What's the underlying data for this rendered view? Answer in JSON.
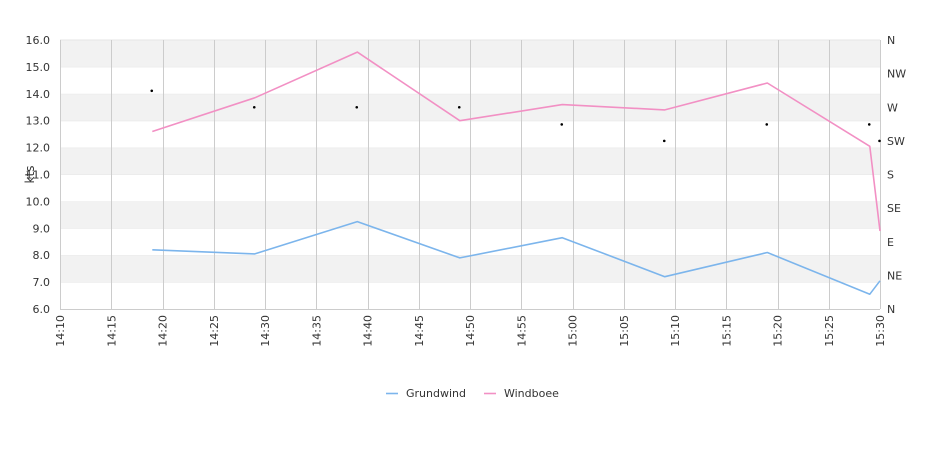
{
  "chart_data": {
    "type": "line",
    "ylabel": "kts",
    "ylim": [
      6.0,
      16.0
    ],
    "y_ticks": [
      "6.0",
      "7.0",
      "8.0",
      "9.0",
      "10.0",
      "11.0",
      "12.0",
      "13.0",
      "14.0",
      "15.0",
      "16.0"
    ],
    "x_range": [
      "14:10",
      "15:30"
    ],
    "x_ticks": [
      "14:10",
      "14:15",
      "14:20",
      "14:25",
      "14:30",
      "14:35",
      "14:40",
      "14:45",
      "14:50",
      "14:55",
      "15:00",
      "15:05",
      "15:10",
      "15:15",
      "15:20",
      "15:25",
      "15:30"
    ],
    "y2_ticks": [
      "N",
      "NE",
      "E",
      "SE",
      "S",
      "SW",
      "W",
      "NW",
      "N"
    ],
    "y2_range_degrees": [
      0,
      360
    ],
    "grid": {
      "vertical": true,
      "horizontal_bands": true
    },
    "legend_position": "bottom-center",
    "series": [
      {
        "name": "Grundwind",
        "color": "#7cb5ec",
        "x": [
          "14:19",
          "14:29",
          "14:39",
          "14:49",
          "14:59",
          "15:09",
          "15:19",
          "15:29",
          "15:30"
        ],
        "values": [
          8.2,
          8.05,
          9.25,
          7.9,
          8.65,
          7.2,
          8.1,
          6.55,
          7.05
        ]
      },
      {
        "name": "Windboee",
        "color": "#f290c4",
        "x": [
          "14:19",
          "14:29",
          "14:39",
          "14:49",
          "14:59",
          "15:09",
          "15:19",
          "15:29",
          "15:30"
        ],
        "values": [
          12.6,
          13.85,
          15.55,
          13.0,
          13.6,
          13.4,
          14.4,
          12.05,
          8.9
        ]
      }
    ],
    "direction_points": {
      "color": "#000000",
      "x": [
        "14:19",
        "14:29",
        "14:39",
        "14:49",
        "14:59",
        "15:09",
        "15:19",
        "15:29",
        "15:30"
      ],
      "degrees": [
        292,
        270,
        270,
        270,
        247,
        225,
        247,
        247,
        225
      ]
    }
  }
}
